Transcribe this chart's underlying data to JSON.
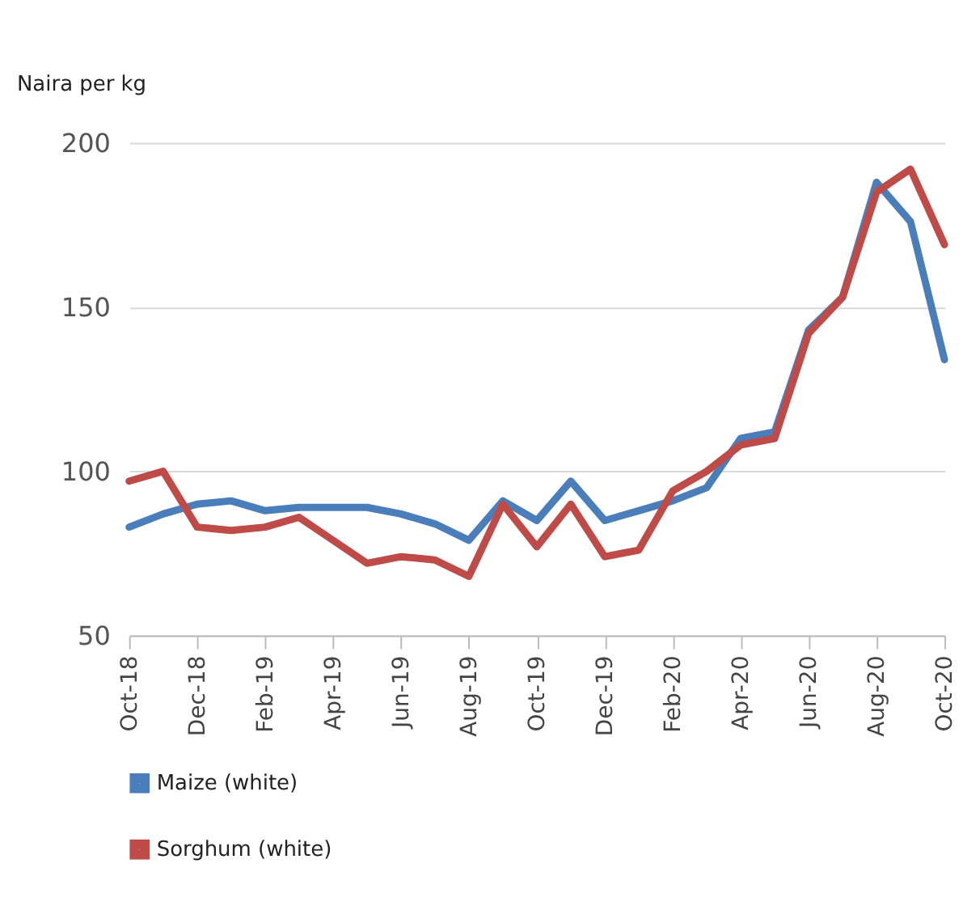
{
  "chart_data": {
    "type": "line",
    "ylabel": "Naira per kg",
    "categories": [
      "Oct-18",
      null,
      "Dec-18",
      null,
      "Feb-19",
      null,
      "Apr-19",
      null,
      "Jun-19",
      null,
      "Aug-19",
      null,
      "Oct-19",
      null,
      "Dec-19",
      null,
      "Feb-20",
      null,
      "Apr-20",
      null,
      "Jun-20",
      null,
      "Aug-20",
      null,
      "Oct-20"
    ],
    "series": [
      {
        "name": "Maize (white)",
        "color": "#4a7ebb",
        "values": [
          83,
          87,
          90,
          91,
          88,
          89,
          89,
          89,
          87,
          84,
          79,
          91,
          85,
          97,
          85,
          88,
          91,
          95,
          110,
          112,
          143,
          153,
          188,
          176,
          134
        ]
      },
      {
        "name": "Sorghum (white)",
        "color": "#be4b48",
        "values": [
          97,
          100,
          83,
          82,
          83,
          86,
          79,
          72,
          74,
          73,
          68,
          90,
          77,
          90,
          74,
          76,
          94,
          100,
          108,
          110,
          142,
          153,
          185,
          192,
          169
        ]
      }
    ],
    "ylim": [
      50,
      200
    ],
    "yticks": [
      50,
      100,
      150,
      200
    ],
    "grid": "y",
    "legend": "bottom left",
    "marker": "none",
    "line_style": "solid"
  }
}
